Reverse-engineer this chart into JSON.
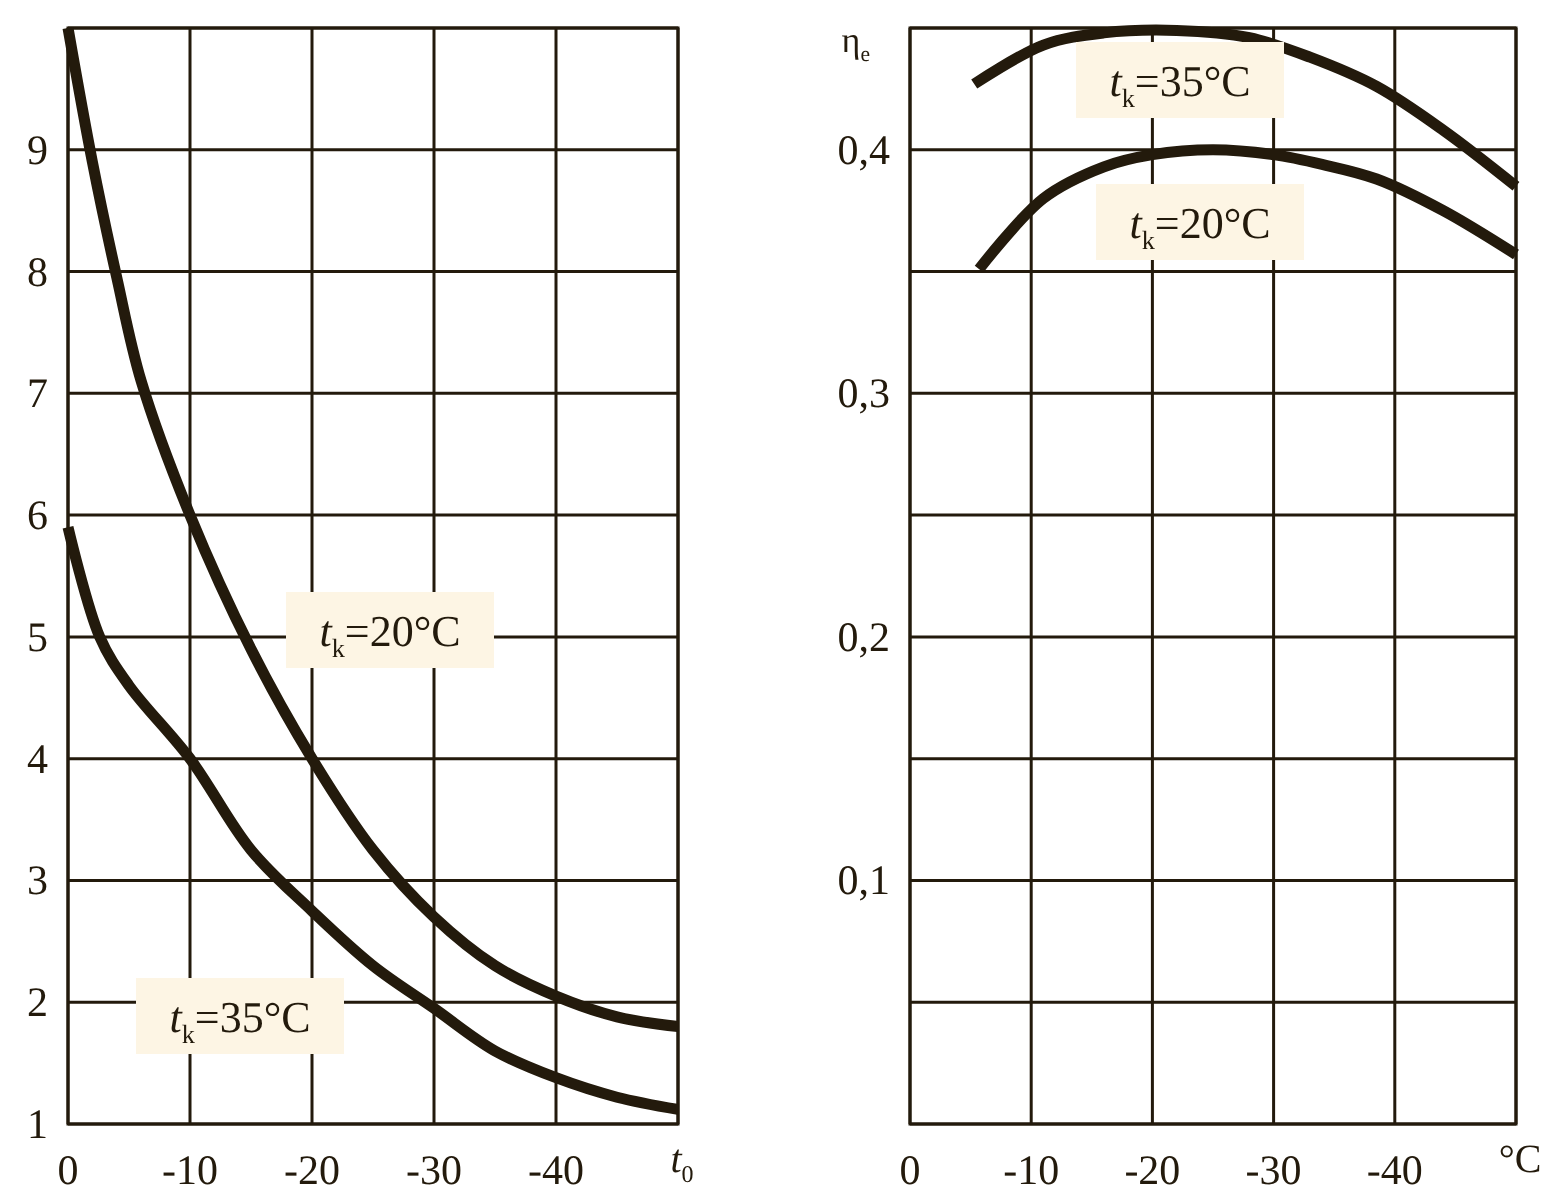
{
  "chart_data": [
    {
      "type": "line",
      "xlabel": "t$_{0}$",
      "xlim": [
        0,
        -50
      ],
      "xticks": [
        0,
        -10,
        -20,
        -30,
        -40,
        {
          "value": -50,
          "label": null
        }
      ],
      "ylim": [
        1,
        10
      ],
      "yticks": [
        1,
        2,
        3,
        4,
        5,
        6,
        7,
        8,
        9,
        {
          "value": 10,
          "label": null
        }
      ],
      "grid": true,
      "marker": "none",
      "line_style": "solid",
      "series": [
        {
          "name": "t$_{k}$=20°C",
          "color": "#231a0c",
          "x": [
            0,
            -2,
            -4,
            -6,
            -10,
            -15,
            -20,
            -25,
            -30,
            -35,
            -40,
            -45,
            -50
          ],
          "values": [
            10,
            8.9,
            7.95,
            7.1,
            6.0,
            4.9,
            4.0,
            3.25,
            2.7,
            2.3,
            2.05,
            1.88,
            1.8
          ]
        },
        {
          "name": "t$_{k}$=35°C",
          "color": "#231a0c",
          "x": [
            0,
            -2.6,
            -5,
            -10,
            -15,
            -20,
            -25,
            -30,
            -35,
            -40,
            -45,
            -50
          ],
          "values": [
            5.9,
            5.0,
            4.6,
            4.0,
            3.25,
            2.75,
            2.3,
            1.95,
            1.6,
            1.38,
            1.22,
            1.12
          ]
        }
      ]
    },
    {
      "type": "line",
      "xlabel": "°C",
      "ylabel": "η$_{e}$",
      "xlim": [
        0,
        -50
      ],
      "xticks": [
        0,
        -10,
        -20,
        -30,
        -40,
        {
          "value": -50,
          "label": null
        }
      ],
      "ylim": [
        0,
        0.45
      ],
      "yticks": [
        {
          "value": 0,
          "label": null
        },
        {
          "value": 0.05,
          "label": null
        },
        {
          "value": 0.1,
          "label": "0,1"
        },
        {
          "value": 0.15,
          "label": null
        },
        {
          "value": 0.2,
          "label": "0,2"
        },
        {
          "value": 0.25,
          "label": null
        },
        {
          "value": 0.3,
          "label": "0,3"
        },
        {
          "value": 0.35,
          "label": null
        },
        {
          "value": 0.4,
          "label": "0,4"
        },
        {
          "value": 0.45,
          "label": null
        }
      ],
      "grid": true,
      "marker": "none",
      "line_style": "solid",
      "series": [
        {
          "name": "t$_{k}$=35°C",
          "color": "#231a0c",
          "x": [
            -5.3,
            -11,
            -16,
            -22,
            -28,
            -33,
            -38.5,
            -44,
            -50
          ],
          "values": [
            0.427,
            0.443,
            0.448,
            0.449,
            0.446,
            0.438,
            0.426,
            0.408,
            0.385
          ]
        },
        {
          "name": "t$_{k}$=20°C",
          "color": "#231a0c",
          "x": [
            -5.7,
            -11,
            -16,
            -20,
            -25,
            -30,
            -34,
            -38.5,
            -44,
            -50
          ],
          "values": [
            0.351,
            0.38,
            0.393,
            0.398,
            0.4,
            0.398,
            0.394,
            0.388,
            0.375,
            0.357
          ]
        }
      ]
    }
  ]
}
